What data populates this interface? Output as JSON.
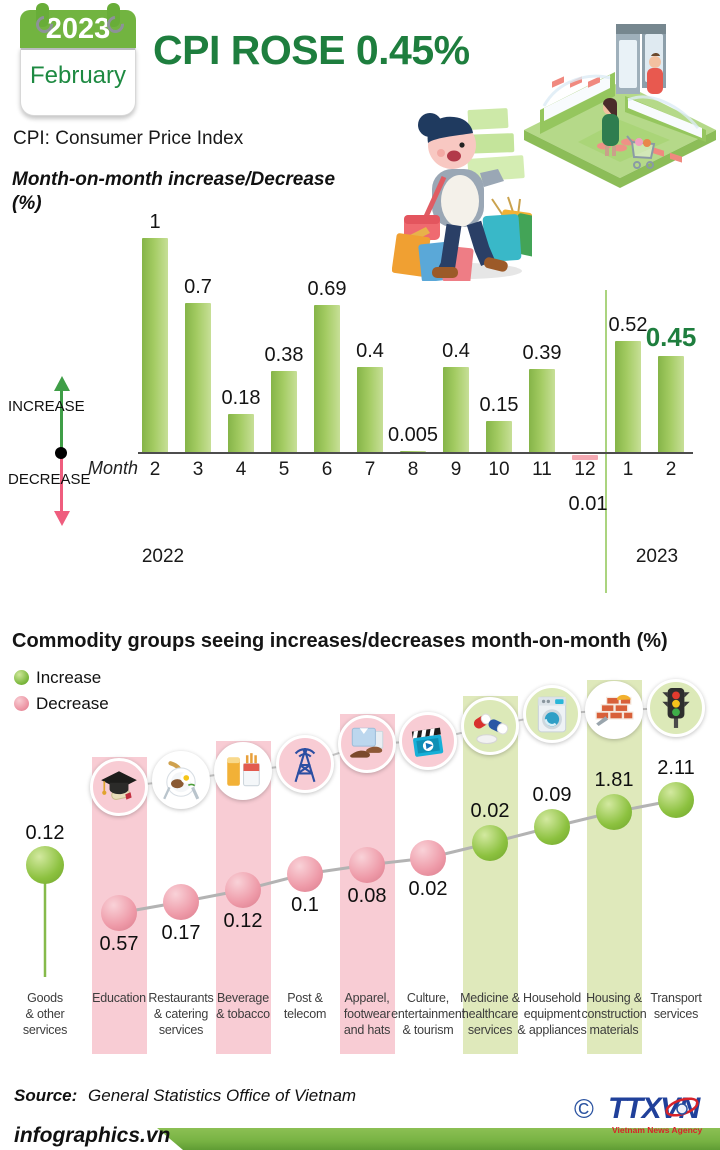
{
  "header": {
    "calendar_year": "2023",
    "calendar_month": "February",
    "title": "CPI ROSE 0.45%",
    "subtitle": "CPI: Consumer Price Index"
  },
  "chart_data": [
    {
      "id": "monthly-cpi",
      "type": "bar",
      "title": "Month-on-month increase/Decrease",
      "unit": "(%)",
      "xlabel": "Month",
      "increase_label": "INCREASE",
      "decrease_label": "DECREASE",
      "group_labels": [
        "2022",
        "2023"
      ],
      "categories": [
        "2",
        "3",
        "4",
        "5",
        "6",
        "7",
        "8",
        "9",
        "10",
        "11",
        "12",
        "1",
        "2"
      ],
      "values": [
        1,
        0.7,
        0.18,
        0.38,
        0.69,
        0.4,
        0.005,
        0.4,
        0.15,
        0.39,
        -0.01,
        0.52,
        0.45
      ],
      "value_labels": [
        "1",
        "0.7",
        "0.18",
        "0.38",
        "0.69",
        "0.4",
        "0.005",
        "0.4",
        "0.15",
        "0.39",
        "0.01",
        "0.52",
        "0.45"
      ],
      "highlight_index": 12,
      "ylim": [
        -0.01,
        1
      ],
      "grid": false
    },
    {
      "id": "commodity-groups",
      "type": "scatter",
      "title": "Commodity groups seeing increases/decreases month-on-month (%)",
      "legend": [
        {
          "label": "Increase",
          "direction": "increase"
        },
        {
          "label": "Decrease",
          "direction": "decrease"
        }
      ],
      "items": [
        {
          "label": "Goods & other services",
          "label_lines": [
            "Goods",
            "& other",
            "services"
          ],
          "value": 0.12,
          "value_label": "0.12",
          "direction": "increase",
          "icon": "",
          "icon_bg": "",
          "band": ""
        },
        {
          "label": "Education",
          "label_lines": [
            "Education"
          ],
          "value": 0.57,
          "value_label": "0.57",
          "direction": "decrease",
          "icon": "graduation-cap",
          "icon_bg": "pink",
          "band": "pink"
        },
        {
          "label": "Restaurants & catering services",
          "label_lines": [
            "Restaurants",
            "& catering",
            "services"
          ],
          "value": 0.17,
          "value_label": "0.17",
          "direction": "decrease",
          "icon": "meal",
          "icon_bg": "white",
          "band": ""
        },
        {
          "label": "Beverage & tobacco",
          "label_lines": [
            "Beverage",
            "& tobacco"
          ],
          "value": 0.12,
          "value_label": "0.12",
          "direction": "decrease",
          "icon": "drink-tobacco",
          "icon_bg": "white",
          "band": "pink"
        },
        {
          "label": "Post & telecom",
          "label_lines": [
            "Post &",
            "telecom"
          ],
          "value": 0.1,
          "value_label": "0.1",
          "direction": "decrease",
          "icon": "antenna",
          "icon_bg": "pink",
          "band": ""
        },
        {
          "label": "Apparel, footwear and hats",
          "label_lines": [
            "Apparel,",
            "footwear",
            "and hats"
          ],
          "value": 0.08,
          "value_label": "0.08",
          "direction": "decrease",
          "icon": "apparel",
          "icon_bg": "pink",
          "band": "pink"
        },
        {
          "label": "Culture, entertainment & tourism",
          "label_lines": [
            "Culture,",
            "entertainment",
            "& tourism"
          ],
          "value": 0.02,
          "value_label": "0.02",
          "direction": "decrease",
          "icon": "cinema",
          "icon_bg": "pink",
          "band": ""
        },
        {
          "label": "Medicine & healthcare services",
          "label_lines": [
            "Medicine &",
            "healthcare",
            "services"
          ],
          "value": 0.02,
          "value_label": "0.02",
          "direction": "increase",
          "icon": "pills",
          "icon_bg": "green",
          "band": "green"
        },
        {
          "label": "Household equipment & appliances",
          "label_lines": [
            "Household",
            "equipment",
            "& appliances"
          ],
          "value": 0.09,
          "value_label": "0.09",
          "direction": "increase",
          "icon": "washing-machine",
          "icon_bg": "green",
          "band": ""
        },
        {
          "label": "Housing & construction materials",
          "label_lines": [
            "Housing &",
            "construction",
            "materials"
          ],
          "value": 1.81,
          "value_label": "1.81",
          "direction": "increase",
          "icon": "bricks",
          "icon_bg": "white",
          "band": "green"
        },
        {
          "label": "Transport services",
          "label_lines": [
            "Transport",
            "services"
          ],
          "value": 2.11,
          "value_label": "2.11",
          "direction": "increase",
          "icon": "traffic-light",
          "icon_bg": "green",
          "band": ""
        }
      ]
    }
  ],
  "colors": {
    "brand_green": "#1e7e3e",
    "bar_green": "#8fbd4f",
    "bar_green_light": "#c7df97",
    "decrease_pink": "#f4a9b2",
    "increase_ball": "#7cb83e",
    "decrease_ball": "#ec93a2",
    "band_pink": "#f8ccd4",
    "band_green": "#dfe9bb"
  },
  "footer": {
    "source_label": "Source:",
    "source_text": "General Statistics Office of Vietnam",
    "site": "infographics.vn",
    "copyright": "©",
    "agency_logo": "TTXVN",
    "agency_name": "Vietnam News Agency"
  }
}
